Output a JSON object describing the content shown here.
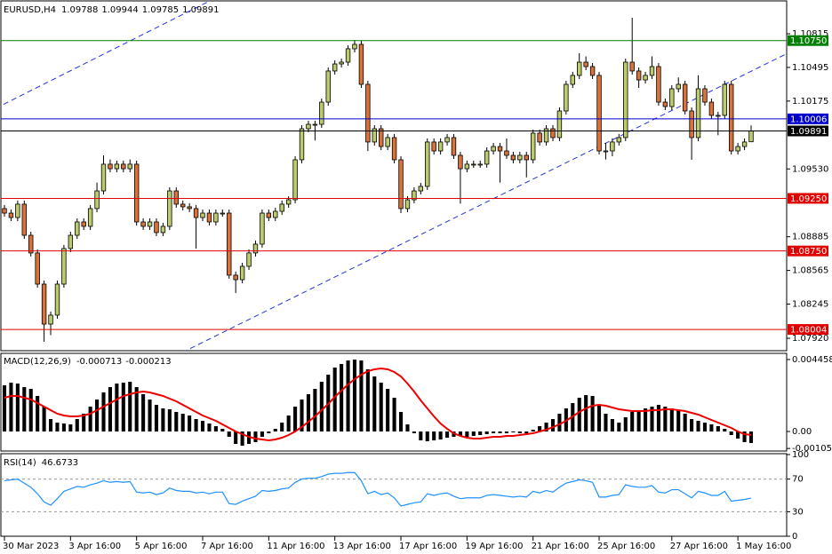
{
  "chart_data": [
    {
      "type": "candlestick",
      "title": "EURUSD,H4",
      "header_values": [
        1.09788,
        1.09944,
        1.09785,
        1.09891
      ],
      "categories": [
        "30 Mar 2023",
        null,
        null,
        null,
        null,
        null,
        null,
        null,
        null,
        null,
        "3 Apr 16:00",
        null,
        null,
        null,
        null,
        null,
        null,
        null,
        null,
        null,
        "5 Apr 16:00",
        null,
        null,
        null,
        null,
        null,
        null,
        null,
        null,
        null,
        "7 Apr 16:00",
        null,
        null,
        null,
        null,
        null,
        null,
        null,
        null,
        null,
        "11 Apr 16:00",
        null,
        null,
        null,
        null,
        null,
        null,
        null,
        null,
        null,
        "13 Apr 16:00",
        null,
        null,
        null,
        null,
        null,
        null,
        null,
        null,
        null,
        "17 Apr 16:00",
        null,
        null,
        null,
        null,
        null,
        null,
        null,
        null,
        null,
        "19 Apr 16:00",
        null,
        null,
        null,
        null,
        null,
        null,
        null,
        null,
        null,
        "21 Apr 16:00",
        null,
        null,
        null,
        null,
        null,
        null,
        null,
        null,
        null,
        "25 Apr 16:00",
        null,
        null,
        null,
        null,
        null,
        null,
        null,
        null,
        null,
        null,
        "27 Apr 16:00",
        null,
        null,
        null,
        null,
        null,
        null,
        null,
        null,
        null,
        "1 May 16:00",
        null,
        null
      ],
      "open": [
        1.09153,
        1.0911,
        1.09068,
        1.09195,
        1.08899,
        1.08731,
        1.08435,
        1.08055,
        1.0814,
        1.08435,
        1.08773,
        1.08899,
        1.09026,
        1.08984,
        1.09153,
        1.09321,
        1.09575,
        1.09532,
        1.09575,
        1.09532,
        1.09575,
        1.09026,
        1.08984,
        1.09026,
        1.08925,
        1.08984,
        1.09321,
        1.09195,
        1.0917,
        1.09153,
        1.09068,
        1.0911,
        1.09026,
        1.0911,
        1.0911,
        1.0852,
        1.08477,
        1.08604,
        1.08731,
        1.08815,
        1.0911,
        1.09068,
        1.09127,
        1.09195,
        1.09237,
        1.09617,
        1.09912,
        1.09954,
        1.09954,
        1.10165,
        1.10461,
        1.10528,
        1.10545,
        1.10672,
        1.10714,
        1.10334,
        1.09786,
        1.09912,
        1.09743,
        1.09828,
        1.09617,
        1.09153,
        1.09237,
        1.09321,
        1.09364,
        1.09786,
        1.09701,
        1.09786,
        1.09828,
        1.09659,
        1.09532,
        1.09575,
        1.09575,
        1.09575,
        1.09701,
        1.09743,
        1.09701,
        1.09659,
        1.09617,
        1.09659,
        1.09617,
        1.0987,
        1.09786,
        1.09912,
        1.09828,
        1.10081,
        1.10334,
        1.10419,
        1.10545,
        1.10503,
        1.10419,
        1.09701,
        1.09701,
        1.09786,
        1.09828,
        1.10545,
        1.10461,
        1.10376,
        1.10419,
        1.10503,
        1.10165,
        1.10123,
        1.10292,
        1.10334,
        1.10081,
        1.09828,
        1.10292,
        1.10165,
        1.10039,
        1.10039,
        1.10334,
        1.09701,
        1.09743,
        1.09788
      ],
      "high": [
        1.09187,
        1.09144,
        1.09229,
        1.09229,
        1.08933,
        1.08765,
        1.08469,
        1.08174,
        1.08469,
        1.08807,
        1.08933,
        1.0906,
        1.0906,
        1.09187,
        1.094,
        1.09659,
        1.0962,
        1.09609,
        1.09609,
        1.0962,
        1.09609,
        1.0906,
        1.0906,
        1.0906,
        1.09018,
        1.09355,
        1.09355,
        1.09229,
        1.09204,
        1.09187,
        1.09144,
        1.09144,
        1.09144,
        1.09144,
        1.09144,
        1.08554,
        1.08638,
        1.08765,
        1.08849,
        1.09144,
        1.09144,
        1.09161,
        1.09229,
        1.09271,
        1.09651,
        1.09946,
        1.09988,
        1.09988,
        1.10199,
        1.10495,
        1.10562,
        1.10579,
        1.10706,
        1.10756,
        1.10748,
        1.10368,
        1.09946,
        1.09946,
        1.09862,
        1.09862,
        1.09651,
        1.09271,
        1.09355,
        1.09398,
        1.0982,
        1.0982,
        1.0982,
        1.09862,
        1.09862,
        1.09693,
        1.09609,
        1.09609,
        1.09609,
        1.09735,
        1.09777,
        1.09777,
        1.0982,
        1.09693,
        1.09693,
        1.09693,
        1.09904,
        1.09904,
        1.09946,
        1.09946,
        1.10115,
        1.10368,
        1.10453,
        1.1063,
        1.106,
        1.10537,
        1.10453,
        1.09777,
        1.0982,
        1.09862,
        1.10579,
        1.10967,
        1.10495,
        1.10453,
        1.106,
        1.10537,
        1.10199,
        1.10326,
        1.104,
        1.10368,
        1.10115,
        1.1042,
        1.10326,
        1.10199,
        1.10073,
        1.10368,
        1.10368,
        1.09777,
        1.0982,
        1.09944
      ],
      "low": [
        1.09076,
        1.09034,
        1.09034,
        1.08865,
        1.08697,
        1.08401,
        1.07887,
        1.0795,
        1.08106,
        1.08401,
        1.08739,
        1.08865,
        1.0895,
        1.0895,
        1.09119,
        1.09287,
        1.09498,
        1.09498,
        1.09498,
        1.09498,
        1.08992,
        1.0895,
        1.0895,
        1.08891,
        1.08891,
        1.0895,
        1.09161,
        1.09136,
        1.09119,
        1.08773,
        1.09034,
        1.08992,
        1.08992,
        1.09076,
        1.08486,
        1.0835,
        1.08443,
        1.0857,
        1.08697,
        1.08781,
        1.09034,
        1.09034,
        1.09093,
        1.09161,
        1.09203,
        1.09583,
        1.09878,
        1.098,
        1.0992,
        1.10131,
        1.10427,
        1.10494,
        1.10511,
        1.10638,
        1.103,
        1.097,
        1.09752,
        1.09709,
        1.09709,
        1.09583,
        1.0911,
        1.09119,
        1.09203,
        1.09287,
        1.0933,
        1.09667,
        1.09667,
        1.09752,
        1.09625,
        1.092,
        1.09498,
        1.09541,
        1.09541,
        1.09541,
        1.09667,
        1.094,
        1.09625,
        1.09583,
        1.09583,
        1.0945,
        1.09583,
        1.09752,
        1.09752,
        1.09794,
        1.09794,
        1.10047,
        1.103,
        1.10385,
        1.10469,
        1.10385,
        1.09667,
        1.0962,
        1.0965,
        1.09752,
        1.09794,
        1.10427,
        1.103,
        1.10342,
        1.10385,
        1.10131,
        1.10089,
        1.10089,
        1.10258,
        1.10047,
        1.09617,
        1.09794,
        1.10131,
        1.10005,
        1.0985,
        1.10005,
        1.09667,
        1.09667,
        1.09709,
        1.09785
      ],
      "close": [
        1.0911,
        1.09068,
        1.09195,
        1.08899,
        1.08731,
        1.08435,
        1.08055,
        1.0814,
        1.08435,
        1.08773,
        1.08899,
        1.09026,
        1.08984,
        1.09153,
        1.09321,
        1.09575,
        1.09532,
        1.09575,
        1.09532,
        1.09575,
        1.09026,
        1.08984,
        1.09026,
        1.08925,
        1.08984,
        1.09321,
        1.09195,
        1.0917,
        1.09153,
        1.09068,
        1.0911,
        1.09026,
        1.0911,
        1.0911,
        1.0852,
        1.08477,
        1.08604,
        1.08731,
        1.08815,
        1.0911,
        1.09068,
        1.09127,
        1.09195,
        1.09237,
        1.09617,
        1.09912,
        1.09954,
        1.09954,
        1.10165,
        1.10461,
        1.10528,
        1.10545,
        1.10672,
        1.10714,
        1.10334,
        1.09786,
        1.09912,
        1.09743,
        1.09828,
        1.09617,
        1.09153,
        1.09237,
        1.09321,
        1.09364,
        1.09786,
        1.09701,
        1.09786,
        1.09828,
        1.09659,
        1.09532,
        1.09575,
        1.09575,
        1.09575,
        1.09701,
        1.09743,
        1.09701,
        1.09659,
        1.09617,
        1.09659,
        1.09617,
        1.0987,
        1.09786,
        1.09912,
        1.09828,
        1.10081,
        1.10334,
        1.10419,
        1.10545,
        1.10503,
        1.10419,
        1.09701,
        1.09701,
        1.09786,
        1.09828,
        1.10545,
        1.10461,
        1.10376,
        1.10419,
        1.10503,
        1.10165,
        1.10123,
        1.10292,
        1.10334,
        1.10081,
        1.09828,
        1.10292,
        1.10165,
        1.10039,
        1.10039,
        1.10334,
        1.09701,
        1.09743,
        1.09786,
        1.09891
      ],
      "up_color": "#bccc6c",
      "down_color": "#d9733a",
      "ylim": [
        1.07802,
        1.11119
      ],
      "yticks": [
        1.10815,
        1.10495,
        1.10175,
        {
          "value": 1.0953,
          "label": "1.09530"
        },
        1.08885,
        1.08565,
        1.08245,
        {
          "value": 1.0792,
          "label": "1.07920"
        }
      ],
      "levels": [
        {
          "value": 1.1075,
          "label": "1.10750",
          "color": "#008000"
        },
        {
          "value": 1.10006,
          "color": "#0000cc"
        },
        {
          "value": 1.09891,
          "color": "#000000"
        },
        {
          "value": 1.0925,
          "label": "1.09250",
          "color": "#e00000"
        },
        {
          "value": 1.0875,
          "label": "1.08750",
          "color": "#e00000"
        },
        {
          "value": 1.08004,
          "color": "#e00000"
        }
      ]
    },
    {
      "type": "macd",
      "title": "MACD(12,26,9)",
      "header_values": [
        -0.000713,
        -0.000213
      ],
      "histogram": {
        "color": "#000000",
        "values": [
          0.00286,
          0.003025,
          0.00297,
          0.00275,
          0.00264,
          0.0022,
          0.00154,
          0.00077,
          0.00055,
          0.000495,
          0.00044,
          0.00077,
          0.0011,
          0.00154,
          0.00198,
          0.00242,
          0.00275,
          0.00297,
          0.003025,
          0.00308,
          0.00275,
          0.00231,
          0.00198,
          0.00165,
          0.00143,
          0.001375,
          0.00121,
          0.0011,
          0.00099,
          0.00077,
          0.00066,
          0.000495,
          0.00033,
          0.000165,
          -0.00033,
          -0.00077,
          -0.00088,
          -0.00077,
          -0.00066,
          -0.00033,
          -0.00011,
          0.000165,
          0.00055,
          0.00099,
          0.00154,
          0.00198,
          0.00231,
          0.00264,
          0.00308,
          0.00352,
          0.00396,
          0.00418,
          0.0044,
          0.004455,
          0.0044,
          0.00385,
          0.00341,
          0.003025,
          0.00264,
          0.00209,
          0.00121,
          0.00044,
          -0.00011,
          -0.00055,
          -0.000605,
          -0.00055,
          -0.000495,
          -0.000385,
          -0.00033,
          -0.000275,
          -0.00033,
          -0.000275,
          -0.00022,
          -0.000165,
          -0.00011,
          -0.00011,
          -0.00011,
          -5.5e-05,
          -0.00011,
          -0.00011,
          0.00011,
          0.00033,
          0.00055,
          0.00077,
          0.0011,
          0.00143,
          0.00176,
          0.00209,
          0.002255,
          0.0022,
          0.00165,
          0.0011,
          0.00077,
          0.00055,
          0.00088,
          0.00121,
          0.00132,
          0.00143,
          0.00154,
          0.00165,
          0.00154,
          0.00143,
          0.00132,
          0.0011,
          0.00077,
          0.00066,
          0.00055,
          0.00044,
          0.00033,
          0.000165,
          -0.00022,
          -0.00044,
          -0.00066,
          -0.000713
        ]
      },
      "signal": {
        "color": "#ee0000",
        "values": [
          0.00209,
          0.0022,
          0.0022,
          0.00209,
          0.00198,
          0.00176,
          0.00154,
          0.00132,
          0.0011,
          0.00099,
          0.000935,
          0.000935,
          0.00099,
          0.0011,
          0.00132,
          0.00154,
          0.00176,
          0.00198,
          0.0022,
          0.00231,
          0.00242,
          0.002475,
          0.00242,
          0.00231,
          0.0022,
          0.002035,
          0.00187,
          0.00165,
          0.00143,
          0.00121,
          0.00099,
          0.000825,
          0.00066,
          0.00044,
          0.00022,
          0,
          -0.000165,
          -0.00033,
          -0.00044,
          -0.000495,
          -0.00055,
          -0.000495,
          -0.000385,
          -0.00022,
          0,
          0.000275,
          0.000605,
          0.000935,
          0.00132,
          0.001705,
          0.002145,
          0.00253,
          0.002915,
          0.003245,
          0.00352,
          0.00374,
          0.00385,
          0.003905,
          0.00385,
          0.003685,
          0.00341,
          0.00297,
          0.002475,
          0.001925,
          0.00143,
          0.000935,
          0.000495,
          0.000165,
          -0.00011,
          -0.000275,
          -0.000385,
          -0.00044,
          -0.00044,
          -0.000385,
          -0.00033,
          -0.00033,
          -0.000275,
          -0.000275,
          -0.00022,
          -0.000165,
          -0.00011,
          0,
          0.00011,
          0.000275,
          0.00044,
          0.00066,
          0.000935,
          0.00121,
          0.00143,
          0.001595,
          0.00165,
          0.001595,
          0.001485,
          0.001375,
          0.00132,
          0.001265,
          0.001265,
          0.001265,
          0.00132,
          0.00132,
          0.001375,
          0.001375,
          0.00132,
          0.001265,
          0.001155,
          0.001045,
          0.00088,
          0.000715,
          0.00055,
          0.000385,
          0.00022,
          0,
          -0.000165,
          -0.000213
        ]
      },
      "ylim": [
        -0.00121,
        0.00484
      ],
      "yticks": [
        0.004458,
        {
          "value": 0,
          "label": "0.00"
        },
        -0.001053
      ]
    },
    {
      "type": "line",
      "title": "RSI(14)",
      "header_values": [
        46.6733
      ],
      "color": "#1e90ff",
      "values": [
        68,
        69,
        70,
        65,
        60,
        52,
        42,
        38,
        46,
        55,
        58,
        61,
        60,
        63,
        65,
        68,
        66,
        67,
        66,
        67,
        54,
        53,
        54,
        51,
        53,
        59,
        56,
        55,
        55,
        53,
        54,
        52,
        54,
        54,
        40,
        39,
        43,
        46,
        49,
        56,
        55,
        56,
        58,
        59,
        66,
        70,
        71,
        71,
        73,
        76,
        77,
        77,
        78,
        78,
        68,
        52,
        55,
        51,
        53,
        47,
        37,
        39,
        41,
        42,
        52,
        50,
        52,
        53,
        49,
        46,
        47,
        47,
        47,
        50,
        51,
        50,
        49,
        48,
        49,
        48,
        55,
        53,
        56,
        54,
        60,
        65,
        67,
        69,
        68,
        66,
        48,
        48,
        50,
        51,
        63,
        61,
        60,
        60,
        62,
        54,
        53,
        57,
        57,
        52,
        47,
        55,
        53,
        50,
        50,
        55,
        43,
        44,
        45,
        46.6733
      ],
      "ylim": [
        0,
        100
      ],
      "yticks": [
        100,
        70,
        30,
        0
      ],
      "levels": [
        70,
        30
      ]
    }
  ]
}
